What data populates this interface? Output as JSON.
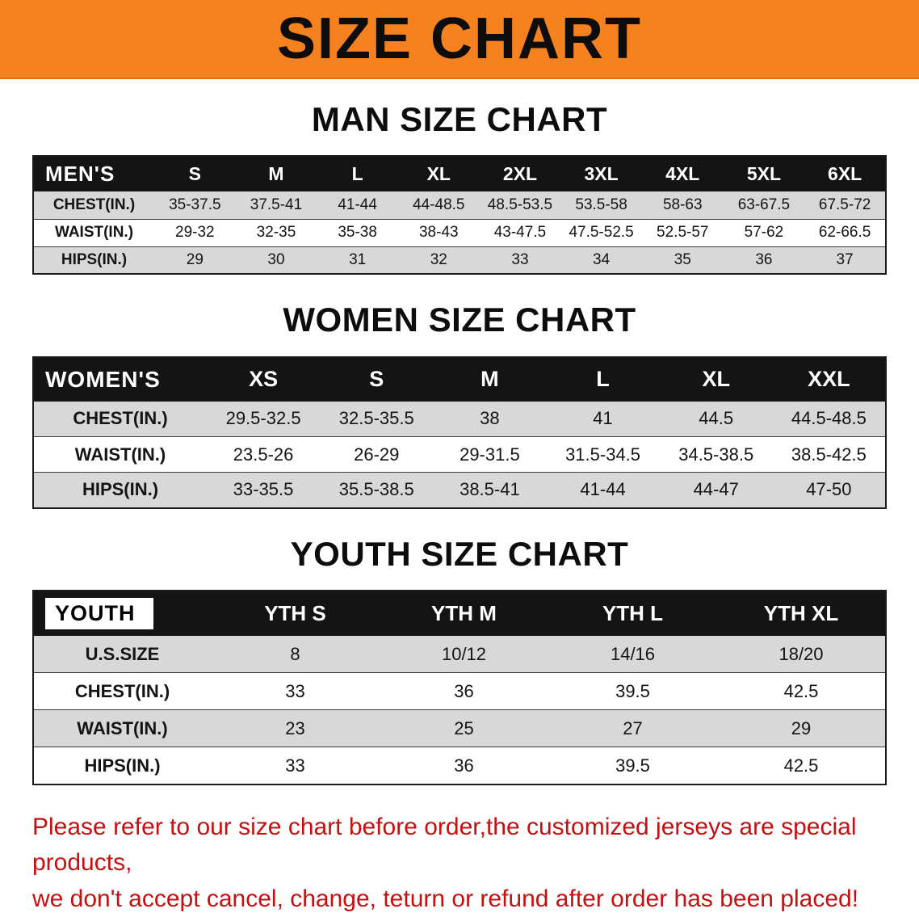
{
  "banner": {
    "title": "SIZE CHART"
  },
  "colors": {
    "banner_bg": "#f6821f",
    "header_bg": "#141414",
    "stripe": "#d8d8d8",
    "notice_red": "#c41010"
  },
  "sections": [
    {
      "heading": "MAN SIZE CHART",
      "table": {
        "label": "MEN'S",
        "columns": [
          "S",
          "M",
          "L",
          "XL",
          "2XL",
          "3XL",
          "4XL",
          "5XL",
          "6XL"
        ],
        "rows": [
          {
            "label": "CHEST(IN.)",
            "values": [
              "35-37.5",
              "37.5-41",
              "41-44",
              "44-48.5",
              "48.5-53.5",
              "53.5-58",
              "58-63",
              "63-67.5",
              "67.5-72"
            ]
          },
          {
            "label": "WAIST(IN.)",
            "values": [
              "29-32",
              "32-35",
              "35-38",
              "38-43",
              "43-47.5",
              "47.5-52.5",
              "52.5-57",
              "57-62",
              "62-66.5"
            ]
          },
          {
            "label": "HIPS(IN.)",
            "values": [
              "29",
              "30",
              "31",
              "32",
              "33",
              "34",
              "35",
              "36",
              "37"
            ]
          }
        ]
      }
    },
    {
      "heading": "WOMEN SIZE CHART",
      "table": {
        "label": "WOMEN'S",
        "columns": [
          "XS",
          "S",
          "M",
          "L",
          "XL",
          "XXL"
        ],
        "rows": [
          {
            "label": "CHEST(IN.)",
            "values": [
              "29.5-32.5",
              "32.5-35.5",
              "38",
              "41",
              "44.5",
              "44.5-48.5"
            ]
          },
          {
            "label": "WAIST(IN.)",
            "values": [
              "23.5-26",
              "26-29",
              "29-31.5",
              "31.5-34.5",
              "34.5-38.5",
              "38.5-42.5"
            ]
          },
          {
            "label": "HIPS(IN.)",
            "values": [
              "33-35.5",
              "35.5-38.5",
              "38.5-41",
              "41-44",
              "44-47",
              "47-50"
            ]
          }
        ]
      }
    },
    {
      "heading": "YOUTH SIZE CHART",
      "table": {
        "label": "YOUTH",
        "columns": [
          "YTH S",
          "YTH M",
          "YTH L",
          "YTH XL"
        ],
        "rows": [
          {
            "label": "U.S.SIZE",
            "values": [
              "8",
              "10/12",
              "14/16",
              "18/20"
            ]
          },
          {
            "label": "CHEST(IN.)",
            "values": [
              "33",
              "36",
              "39.5",
              "42.5"
            ]
          },
          {
            "label": "WAIST(IN.)",
            "values": [
              "23",
              "25",
              "27",
              "29"
            ]
          },
          {
            "label": "HIPS(IN.)",
            "values": [
              "33",
              "36",
              "39.5",
              "42.5"
            ]
          }
        ]
      }
    }
  ],
  "footer": {
    "line1": "Please refer to our size chart before order,the customized jerseys are special products,",
    "line2": "we don't accept cancel, change, teturn or refund after order has been placed!"
  }
}
